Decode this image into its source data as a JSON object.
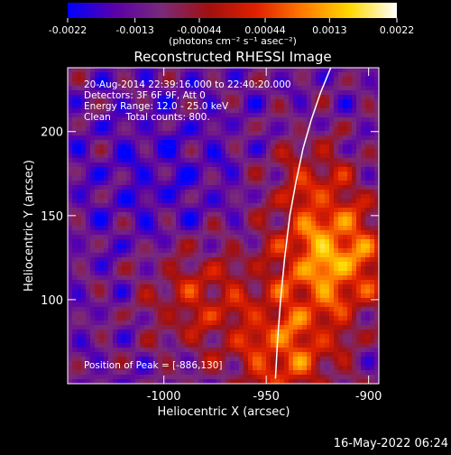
{
  "colorbar": {
    "ticks": [
      "-0.0022",
      "-0.0013",
      "-0.00044",
      "0.00044",
      "0.0013",
      "0.0022"
    ],
    "tick_values": [
      -0.0022,
      -0.0013,
      -0.00044,
      0.00044,
      0.0013,
      0.0022
    ],
    "range": [
      -0.0022,
      0.0022
    ],
    "unit_label": "(photons cm⁻² s⁻¹ asec⁻²)",
    "colormap": [
      "#0000ff",
      "#5a00aa",
      "#7a2a7a",
      "#a01010",
      "#e02000",
      "#ff7a00",
      "#ffd800",
      "#ffffff"
    ]
  },
  "chart_data": {
    "type": "heatmap",
    "title": "Reconstructed RHESSI Image",
    "xlabel": "Heliocentric X (arcsec)",
    "ylabel": "Heliocentric Y (arcsec)",
    "xlim": [
      -1047,
      -895
    ],
    "ylim": [
      50,
      238
    ],
    "x_ticks": [
      -1000,
      -950,
      -900
    ],
    "x_tick_labels": [
      "-1000",
      "-950",
      "-900"
    ],
    "y_ticks": [
      100,
      150,
      200
    ],
    "y_tick_labels": [
      "100",
      "150",
      "200"
    ],
    "limb_curve": {
      "x": [
        -945.5,
        -944.5,
        -943,
        -941,
        -938.5,
        -935.5,
        -932,
        -928,
        -923.5,
        -918.5
      ],
      "y": [
        53,
        75,
        100,
        125,
        150,
        170,
        190,
        207,
        223,
        238
      ]
    },
    "peak": {
      "x": -886,
      "y": 130
    },
    "annotations": [
      "20-Aug-2014 22:39:16.000 to 22:40:20.000",
      "Detectors: 3F 6F 9F, Att 0",
      "Energy Range: 12.0 - 25.0 keV",
      "Clean     Total counts: 800.",
      "Position of Peak = [-886,130]"
    ],
    "grid": false
  },
  "footer_timestamp": "16-May-2022 06:24"
}
